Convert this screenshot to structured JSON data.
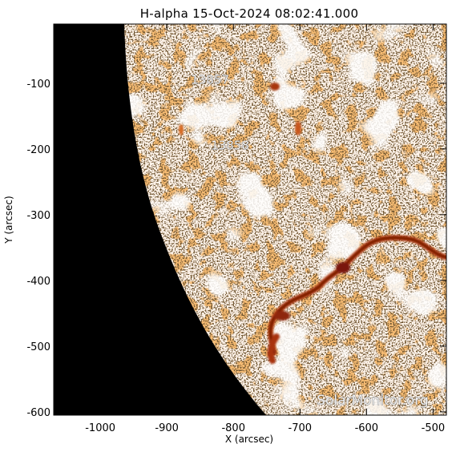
{
  "figure": {
    "title": "H-alpha 15-Oct-2024 08:02:41.000",
    "x_axis_label": "X (arcsec)",
    "y_axis_label": "Y (arcsec)",
    "x_ticks": [
      "-1000",
      "-900",
      "-800",
      "-700",
      "-600",
      "-500"
    ],
    "y_ticks": [
      "-100",
      "-200",
      "-300",
      "-400",
      "-500",
      "-600"
    ],
    "x_tick_values": [
      -1000,
      -900,
      -800,
      -700,
      -600,
      -500
    ],
    "y_tick_values": [
      -100,
      -200,
      -300,
      -400,
      -500,
      -600
    ],
    "x_range": [
      -1070,
      -480
    ],
    "y_range": [
      -605,
      -10
    ],
    "active_regions": [
      {
        "label": "13857",
        "x": -835,
        "y": -95
      },
      {
        "label": "13858",
        "x": -805,
        "y": -195
      }
    ],
    "watermark": "SolarMonitor.org"
  },
  "colors": {
    "space": "#000000",
    "disk_background": "#fff4ea",
    "bright_plage": "#ffffff",
    "dark_speckle": "#2a1608",
    "orange_texture": "#ec7f2c",
    "filament_red": "#b33a10",
    "filament_core": "#6e1404"
  }
}
